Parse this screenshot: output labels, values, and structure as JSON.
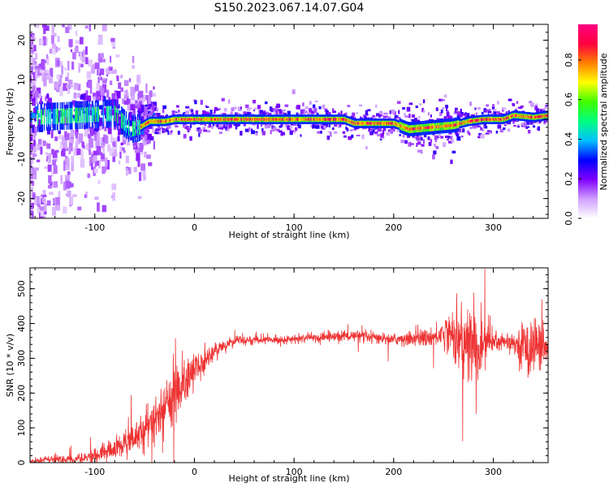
{
  "figure": {
    "title": "S150.2023.067.14.07.G04"
  },
  "chart_data": [
    {
      "type": "heatmap",
      "xlabel": "Height of straight line (km)",
      "ylabel": "Frequency (Hz)",
      "xlim": [
        -165,
        355
      ],
      "ylim": [
        -25,
        24
      ],
      "xticks": [
        -100,
        0,
        100,
        200,
        300
      ],
      "yticks": [
        -20,
        -10,
        0,
        10,
        20
      ],
      "colorbar": {
        "label": "Normalized spectral amplitude",
        "range": [
          0,
          0.98
        ],
        "ticks": [
          0.0,
          0.2,
          0.4,
          0.6,
          0.8
        ],
        "tick_labels": [
          "0.0",
          "0.2",
          "0.4",
          "0.6",
          "0.8"
        ],
        "colormap": [
          "#ffffff",
          "#d0a0ff",
          "#8000ff",
          "#0000ff",
          "#00c0ff",
          "#00ff80",
          "#40ff00",
          "#ffff00",
          "#ff8000",
          "#ff0040",
          "#ff0080"
        ]
      },
      "ridge": {
        "description_points": [
          {
            "x": -160,
            "y": 0.5
          },
          {
            "x": -120,
            "y": 1.0
          },
          {
            "x": -80,
            "y": 1.5
          },
          {
            "x": -65,
            "y": -2.5
          },
          {
            "x": -55,
            "y": -2.0
          },
          {
            "x": -45,
            "y": -0.5
          },
          {
            "x": -30,
            "y": -0.5
          },
          {
            "x": -20,
            "y": 0.0
          },
          {
            "x": 150,
            "y": 0.0
          },
          {
            "x": 160,
            "y": -1.0
          },
          {
            "x": 200,
            "y": -1.0
          },
          {
            "x": 215,
            "y": -2.5
          },
          {
            "x": 260,
            "y": -1.5
          },
          {
            "x": 275,
            "y": -0.5
          },
          {
            "x": 290,
            "y": 0.0
          },
          {
            "x": 310,
            "y": 0.0
          },
          {
            "x": 320,
            "y": 1.0
          },
          {
            "x": 340,
            "y": 0.5
          },
          {
            "x": 355,
            "y": 1.0
          }
        ]
      }
    },
    {
      "type": "line",
      "xlabel": "Height of straight line (km)",
      "ylabel": "SNR (10 * v/v)",
      "xlim": [
        -165,
        355
      ],
      "ylim": [
        0,
        560
      ],
      "xticks": [
        -100,
        0,
        100,
        200,
        300
      ],
      "yticks": [
        0,
        100,
        200,
        300,
        400,
        500
      ],
      "series": [
        {
          "color": "#ee3333",
          "envelope": [
            {
              "x": -165,
              "mean": 5,
              "noise": 8
            },
            {
              "x": -120,
              "mean": 10,
              "noise": 12
            },
            {
              "x": -100,
              "mean": 20,
              "noise": 20
            },
            {
              "x": -80,
              "mean": 40,
              "noise": 30
            },
            {
              "x": -60,
              "mean": 70,
              "noise": 40
            },
            {
              "x": -40,
              "mean": 120,
              "noise": 60
            },
            {
              "x": -20,
              "mean": 200,
              "noise": 80
            },
            {
              "x": 0,
              "mean": 270,
              "noise": 50
            },
            {
              "x": 20,
              "mean": 320,
              "noise": 25
            },
            {
              "x": 40,
              "mean": 350,
              "noise": 12
            },
            {
              "x": 100,
              "mean": 355,
              "noise": 10
            },
            {
              "x": 150,
              "mean": 365,
              "noise": 15
            },
            {
              "x": 200,
              "mean": 355,
              "noise": 15
            },
            {
              "x": 240,
              "mean": 360,
              "noise": 25
            },
            {
              "x": 255,
              "mean": 380,
              "noise": 50
            },
            {
              "x": 270,
              "mean": 340,
              "noise": 110
            },
            {
              "x": 285,
              "mean": 330,
              "noise": 110
            },
            {
              "x": 300,
              "mean": 350,
              "noise": 40
            },
            {
              "x": 320,
              "mean": 345,
              "noise": 15
            },
            {
              "x": 335,
              "mean": 330,
              "noise": 90
            },
            {
              "x": 345,
              "mean": 340,
              "noise": 70
            },
            {
              "x": 355,
              "mean": 320,
              "noise": 40
            }
          ]
        }
      ]
    }
  ]
}
